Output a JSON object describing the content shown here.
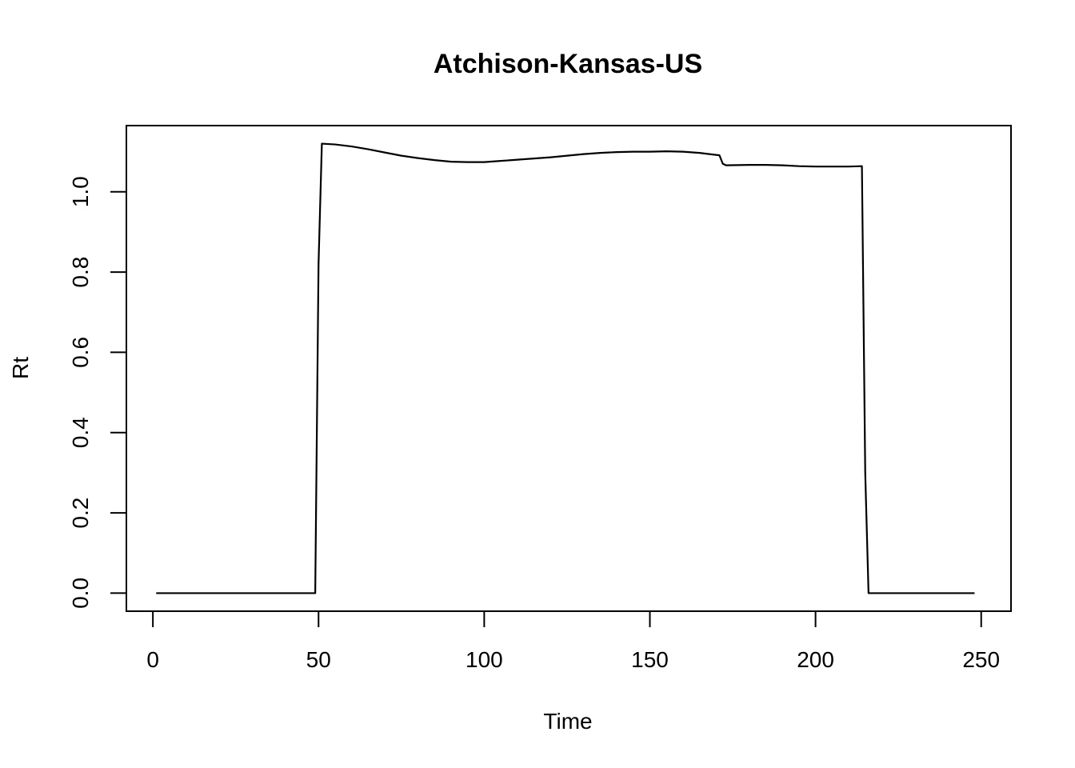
{
  "chart_data": {
    "type": "line",
    "title": "Atchison-Kansas-US",
    "xlabel": "Time",
    "ylabel": "Rt",
    "xlim": [
      -8,
      259
    ],
    "ylim": [
      -0.045,
      1.165
    ],
    "x_ticks": [
      0,
      50,
      100,
      150,
      200,
      250
    ],
    "x_tick_labels": [
      "0",
      "50",
      "100",
      "150",
      "200",
      "250"
    ],
    "y_ticks": [
      0.0,
      0.2,
      0.4,
      0.6,
      0.8,
      1.0
    ],
    "y_tick_labels": [
      "0.0",
      "0.2",
      "0.4",
      "0.6",
      "0.8",
      "1.0"
    ],
    "grid": false,
    "series": [
      {
        "x": [
          1,
          49,
          50,
          51,
          55,
          60,
          65,
          70,
          75,
          80,
          85,
          90,
          95,
          100,
          105,
          110,
          115,
          120,
          125,
          130,
          135,
          140,
          145,
          150,
          155,
          160,
          165,
          171,
          172,
          173,
          180,
          185,
          190,
          195,
          200,
          205,
          210,
          214,
          215,
          216,
          248
        ],
        "y": [
          0,
          0,
          0.82,
          1.12,
          1.118,
          1.113,
          1.106,
          1.098,
          1.09,
          1.084,
          1.079,
          1.075,
          1.074,
          1.074,
          1.077,
          1.08,
          1.083,
          1.086,
          1.09,
          1.094,
          1.097,
          1.099,
          1.1,
          1.1,
          1.101,
          1.1,
          1.097,
          1.091,
          1.07,
          1.066,
          1.067,
          1.067,
          1.066,
          1.064,
          1.063,
          1.063,
          1.063,
          1.064,
          0.3,
          0,
          0
        ]
      }
    ]
  }
}
